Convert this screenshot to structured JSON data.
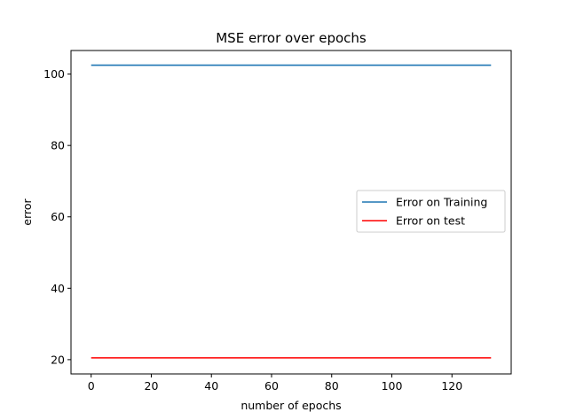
{
  "chart_data": {
    "type": "line",
    "title": "MSE error over epochs",
    "xlabel": "number of epochs",
    "ylabel": "error",
    "xlim": [
      -6.7,
      139.7
    ],
    "ylim": [
      16.0,
      106.6
    ],
    "xticks": [
      0,
      20,
      40,
      60,
      80,
      100,
      120
    ],
    "yticks": [
      20,
      40,
      60,
      80,
      100
    ],
    "grid": false,
    "legend_position": "center-right",
    "series": [
      {
        "name": "Error on Training",
        "color": "#1f77b4",
        "x": [
          0,
          133
        ],
        "y": [
          102.5,
          102.5
        ]
      },
      {
        "name": "Error on test",
        "color": "#ff0000",
        "x": [
          0,
          133
        ],
        "y": [
          20.5,
          20.5
        ]
      }
    ]
  }
}
